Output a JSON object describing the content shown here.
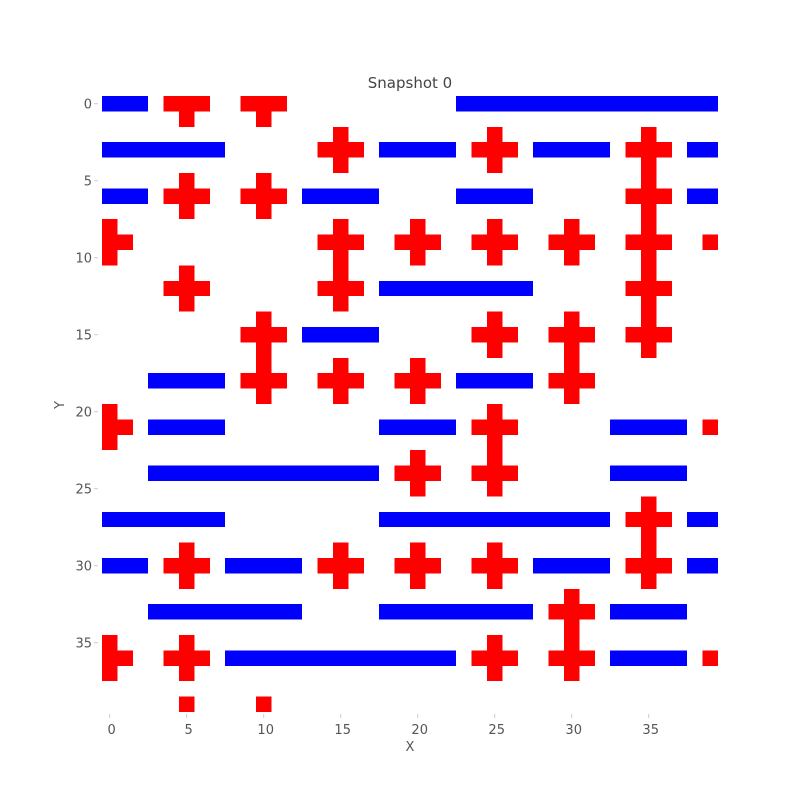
{
  "chart_data": {
    "type": "heatmap",
    "title": "Snapshot 0",
    "xlabel": "X",
    "ylabel": "Y",
    "xlim": [
      -0.5,
      39.5
    ],
    "ylim": [
      -0.5,
      39.5
    ],
    "y_inverted": true,
    "x_ticks": [
      0,
      5,
      10,
      15,
      20,
      25,
      30,
      35
    ],
    "y_ticks": [
      0,
      5,
      10,
      15,
      20,
      25,
      30,
      35
    ],
    "grid": false,
    "colors": {
      "horizontal": "#0000ff",
      "vertical": "#ff0000",
      "empty": "#ffffff"
    },
    "horizontal_segments": [
      {
        "row": 0,
        "x_start": 0,
        "x_end": 2
      },
      {
        "row": 0,
        "x_start": 23,
        "x_end": 39
      },
      {
        "row": 3,
        "x_start": 0,
        "x_end": 7
      },
      {
        "row": 3,
        "x_start": 18,
        "x_end": 22
      },
      {
        "row": 3,
        "x_start": 28,
        "x_end": 32
      },
      {
        "row": 3,
        "x_start": 38,
        "x_end": 39
      },
      {
        "row": 6,
        "x_start": 0,
        "x_end": 2
      },
      {
        "row": 6,
        "x_start": 13,
        "x_end": 17
      },
      {
        "row": 6,
        "x_start": 23,
        "x_end": 27
      },
      {
        "row": 6,
        "x_start": 38,
        "x_end": 39
      },
      {
        "row": 12,
        "x_start": 18,
        "x_end": 27
      },
      {
        "row": 15,
        "x_start": 13,
        "x_end": 17
      },
      {
        "row": 18,
        "x_start": 3,
        "x_end": 7
      },
      {
        "row": 18,
        "x_start": 23,
        "x_end": 27
      },
      {
        "row": 21,
        "x_start": 3,
        "x_end": 7
      },
      {
        "row": 21,
        "x_start": 18,
        "x_end": 22
      },
      {
        "row": 21,
        "x_start": 33,
        "x_end": 37
      },
      {
        "row": 24,
        "x_start": 3,
        "x_end": 17
      },
      {
        "row": 24,
        "x_start": 33,
        "x_end": 37
      },
      {
        "row": 27,
        "x_start": 0,
        "x_end": 7
      },
      {
        "row": 27,
        "x_start": 18,
        "x_end": 32
      },
      {
        "row": 27,
        "x_start": 38,
        "x_end": 39
      },
      {
        "row": 30,
        "x_start": 0,
        "x_end": 2
      },
      {
        "row": 30,
        "x_start": 8,
        "x_end": 12
      },
      {
        "row": 30,
        "x_start": 28,
        "x_end": 32
      },
      {
        "row": 30,
        "x_start": 38,
        "x_end": 39
      },
      {
        "row": 33,
        "x_start": 3,
        "x_end": 12
      },
      {
        "row": 33,
        "x_start": 18,
        "x_end": 27
      },
      {
        "row": 33,
        "x_start": 33,
        "x_end": 37
      },
      {
        "row": 36,
        "x_start": 8,
        "x_end": 22
      },
      {
        "row": 36,
        "x_start": 33,
        "x_end": 37
      }
    ],
    "vertical_segments": [
      {
        "col": 0,
        "y_start": 8,
        "y_end": 10
      },
      {
        "col": 0,
        "y_start": 20,
        "y_end": 22
      },
      {
        "col": 0,
        "y_start": 35,
        "y_end": 37
      },
      {
        "col": 5,
        "y_start": 0,
        "y_end": 1
      },
      {
        "col": 5,
        "y_start": 5,
        "y_end": 7
      },
      {
        "col": 5,
        "y_start": 11,
        "y_end": 13
      },
      {
        "col": 5,
        "y_start": 29,
        "y_end": 31
      },
      {
        "col": 5,
        "y_start": 35,
        "y_end": 37
      },
      {
        "col": 5,
        "y_start": 39,
        "y_end": 39
      },
      {
        "col": 10,
        "y_start": 0,
        "y_end": 1
      },
      {
        "col": 10,
        "y_start": 5,
        "y_end": 7
      },
      {
        "col": 10,
        "y_start": 14,
        "y_end": 19
      },
      {
        "col": 10,
        "y_start": 39,
        "y_end": 39
      },
      {
        "col": 15,
        "y_start": 2,
        "y_end": 4
      },
      {
        "col": 15,
        "y_start": 8,
        "y_end": 13
      },
      {
        "col": 15,
        "y_start": 17,
        "y_end": 19
      },
      {
        "col": 15,
        "y_start": 29,
        "y_end": 31
      },
      {
        "col": 20,
        "y_start": 8,
        "y_end": 10
      },
      {
        "col": 20,
        "y_start": 17,
        "y_end": 19
      },
      {
        "col": 20,
        "y_start": 23,
        "y_end": 25
      },
      {
        "col": 20,
        "y_start": 29,
        "y_end": 31
      },
      {
        "col": 25,
        "y_start": 2,
        "y_end": 4
      },
      {
        "col": 25,
        "y_start": 8,
        "y_end": 10
      },
      {
        "col": 25,
        "y_start": 14,
        "y_end": 16
      },
      {
        "col": 25,
        "y_start": 20,
        "y_end": 25
      },
      {
        "col": 25,
        "y_start": 29,
        "y_end": 31
      },
      {
        "col": 25,
        "y_start": 35,
        "y_end": 37
      },
      {
        "col": 30,
        "y_start": 8,
        "y_end": 10
      },
      {
        "col": 30,
        "y_start": 14,
        "y_end": 19
      },
      {
        "col": 30,
        "y_start": 32,
        "y_end": 37
      },
      {
        "col": 35,
        "y_start": 2,
        "y_end": 16
      },
      {
        "col": 35,
        "y_start": 26,
        "y_end": 31
      }
    ],
    "single_cells": [
      {
        "x": 39,
        "y": 9
      },
      {
        "x": 39,
        "y": 21
      },
      {
        "x": 39,
        "y": 36
      }
    ],
    "cross_arms": [
      {
        "x": 1,
        "y": 9
      },
      {
        "x": 1,
        "y": 21
      },
      {
        "x": 1,
        "y": 36
      },
      {
        "x": 4,
        "y": 0
      },
      {
        "x": 6,
        "y": 0
      },
      {
        "x": 9,
        "y": 0
      },
      {
        "x": 11,
        "y": 0
      },
      {
        "x": 14,
        "y": 3
      },
      {
        "x": 16,
        "y": 3
      },
      {
        "x": 24,
        "y": 3
      },
      {
        "x": 26,
        "y": 3
      },
      {
        "x": 34,
        "y": 3
      },
      {
        "x": 36,
        "y": 3
      },
      {
        "x": 4,
        "y": 6
      },
      {
        "x": 6,
        "y": 6
      },
      {
        "x": 9,
        "y": 6
      },
      {
        "x": 11,
        "y": 6
      },
      {
        "x": 34,
        "y": 6
      },
      {
        "x": 36,
        "y": 6
      },
      {
        "x": 14,
        "y": 9
      },
      {
        "x": 16,
        "y": 9
      },
      {
        "x": 19,
        "y": 9
      },
      {
        "x": 21,
        "y": 9
      },
      {
        "x": 24,
        "y": 9
      },
      {
        "x": 26,
        "y": 9
      },
      {
        "x": 29,
        "y": 9
      },
      {
        "x": 31,
        "y": 9
      },
      {
        "x": 34,
        "y": 9
      },
      {
        "x": 36,
        "y": 9
      },
      {
        "x": 4,
        "y": 12
      },
      {
        "x": 6,
        "y": 12
      },
      {
        "x": 14,
        "y": 12
      },
      {
        "x": 16,
        "y": 12
      },
      {
        "x": 34,
        "y": 12
      },
      {
        "x": 36,
        "y": 12
      },
      {
        "x": 9,
        "y": 15
      },
      {
        "x": 11,
        "y": 15
      },
      {
        "x": 24,
        "y": 15
      },
      {
        "x": 26,
        "y": 15
      },
      {
        "x": 29,
        "y": 15
      },
      {
        "x": 31,
        "y": 15
      },
      {
        "x": 34,
        "y": 15
      },
      {
        "x": 36,
        "y": 15
      },
      {
        "x": 9,
        "y": 18
      },
      {
        "x": 11,
        "y": 18
      },
      {
        "x": 14,
        "y": 18
      },
      {
        "x": 16,
        "y": 18
      },
      {
        "x": 19,
        "y": 18
      },
      {
        "x": 21,
        "y": 18
      },
      {
        "x": 29,
        "y": 18
      },
      {
        "x": 31,
        "y": 18
      },
      {
        "x": 24,
        "y": 21
      },
      {
        "x": 26,
        "y": 21
      },
      {
        "x": 19,
        "y": 24
      },
      {
        "x": 21,
        "y": 24
      },
      {
        "x": 24,
        "y": 24
      },
      {
        "x": 26,
        "y": 24
      },
      {
        "x": 34,
        "y": 27
      },
      {
        "x": 36,
        "y": 27
      },
      {
        "x": 4,
        "y": 30
      },
      {
        "x": 6,
        "y": 30
      },
      {
        "x": 14,
        "y": 30
      },
      {
        "x": 16,
        "y": 30
      },
      {
        "x": 19,
        "y": 30
      },
      {
        "x": 21,
        "y": 30
      },
      {
        "x": 24,
        "y": 30
      },
      {
        "x": 26,
        "y": 30
      },
      {
        "x": 34,
        "y": 30
      },
      {
        "x": 36,
        "y": 30
      },
      {
        "x": 29,
        "y": 33
      },
      {
        "x": 31,
        "y": 33
      },
      {
        "x": 4,
        "y": 36
      },
      {
        "x": 6,
        "y": 36
      },
      {
        "x": 24,
        "y": 36
      },
      {
        "x": 26,
        "y": 36
      },
      {
        "x": 29,
        "y": 36
      },
      {
        "x": 31,
        "y": 36
      }
    ]
  }
}
